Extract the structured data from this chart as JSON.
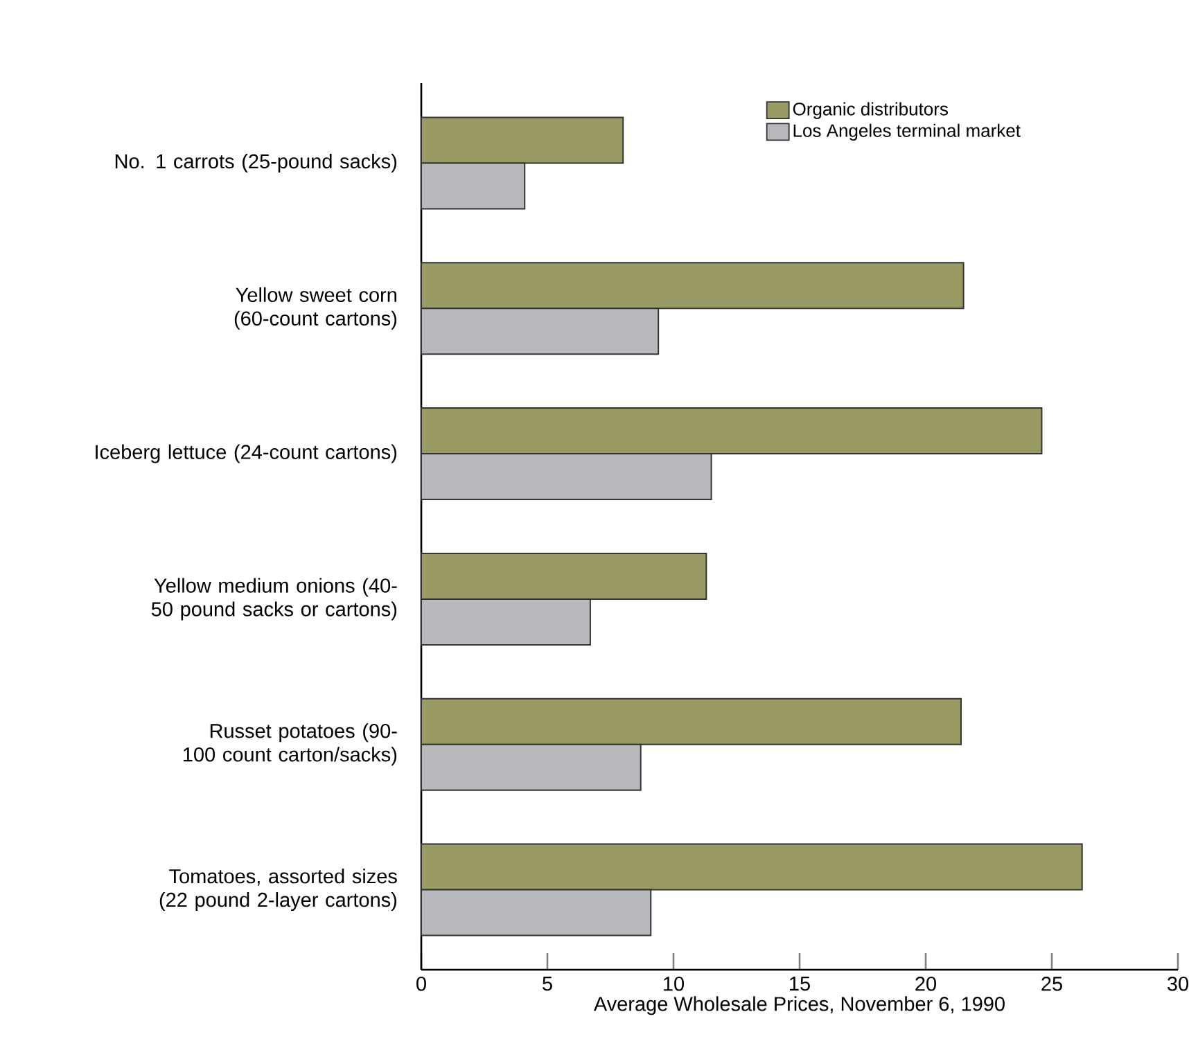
{
  "chart_data": {
    "type": "bar",
    "orientation": "horizontal",
    "xlabel": "Average Wholesale Prices, November 6, 1990",
    "categories": [
      "No. 1 carrots (25-pound sacks)",
      "Yellow sweet corn (60-count cartons)",
      "Iceberg lettuce (24-count cartons)",
      "Yellow medium onions (40-50 pound sacks or cartons)",
      "Russet potatoes (90-100 count carton/sacks)",
      "Tomatoes, assorted sizes (22 pound 2-layer cartons)"
    ],
    "series": [
      {
        "name": "Organic distributors",
        "color": "#9a9a64",
        "values": [
          8.0,
          21.5,
          24.6,
          11.3,
          21.4,
          26.2
        ]
      },
      {
        "name": "Los Angeles terminal market",
        "color": "#b9b9bd",
        "values": [
          4.1,
          9.4,
          11.5,
          6.7,
          8.7,
          9.1
        ]
      }
    ],
    "xlim": [
      0,
      30
    ],
    "xticks": [
      0,
      5,
      10,
      15,
      20,
      25,
      30
    ],
    "legend": "top right",
    "grid": false
  }
}
